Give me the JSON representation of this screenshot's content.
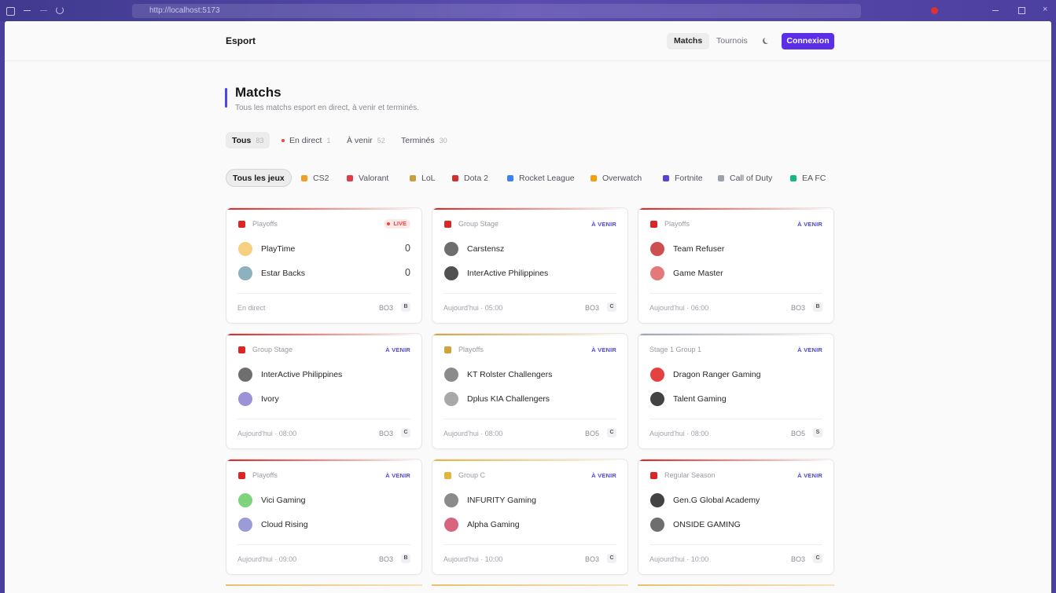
{
  "browser": {
    "url": "http://localhost:5173"
  },
  "header": {
    "brand": "Esport",
    "nav": [
      "Matchs",
      "Tournois"
    ],
    "login": "Connexion"
  },
  "page": {
    "title": "Matchs",
    "subtitle": "Tous les matchs esport en direct, à venir et terminés."
  },
  "status_tabs": [
    {
      "label": "Tous",
      "count": 83
    },
    {
      "label": "En direct",
      "count": 1
    },
    {
      "label": "À venir",
      "count": 52
    },
    {
      "label": "Terminés",
      "count": 30
    }
  ],
  "games": [
    "Tous les jeux",
    "CS2",
    "Valorant",
    "LoL",
    "Dota 2",
    "Rocket League",
    "Overwatch",
    "Fortnite",
    "Call of Duty",
    "EA FC"
  ],
  "matches": [
    {
      "stage": "Playoffs",
      "status": "LIVE",
      "team1": "PlayTime",
      "score1": 0,
      "team2": "Estar Backs",
      "score2": 0,
      "time": "En direct",
      "format": "BO3",
      "badge": "B"
    },
    {
      "stage": "Group Stage",
      "status": "À VENIR",
      "team1": "Carstensz",
      "team2": "InterActive Philippines",
      "time": "Aujourd'hui · 05:00",
      "format": "BO3",
      "badge": "C"
    },
    {
      "stage": "Playoffs",
      "status": "À VENIR",
      "team1": "Team Refuser",
      "team2": "Game Master",
      "time": "Aujourd'hui · 06:00",
      "format": "BO3",
      "badge": "B"
    },
    {
      "stage": "Group Stage",
      "status": "À VENIR",
      "team1": "InterActive Philippines",
      "team2": "Ivory",
      "time": "Aujourd'hui · 08:00",
      "format": "BO3",
      "badge": "C"
    },
    {
      "stage": "Playoffs",
      "status": "À VENIR",
      "team1": "KT Rolster Challengers",
      "team2": "Dplus KIA Challengers",
      "time": "Aujourd'hui · 08:00",
      "format": "BO5",
      "badge": "C"
    },
    {
      "stage": "Stage 1 Group 1",
      "status": "À VENIR",
      "team1": "Dragon Ranger Gaming",
      "team2": "Talent Gaming",
      "time": "Aujourd'hui · 08:00",
      "format": "BO5",
      "badge": "S"
    },
    {
      "stage": "Playoffs",
      "status": "À VENIR",
      "team1": "Vici Gaming",
      "team2": "Cloud Rising",
      "time": "Aujourd'hui · 09:00",
      "format": "BO3",
      "badge": "B"
    },
    {
      "stage": "Group C",
      "status": "À VENIR",
      "team1": "INFURITY Gaming",
      "team2": "Alpha Gaming",
      "time": "Aujourd'hui · 10:00",
      "format": "BO3",
      "badge": "C"
    },
    {
      "stage": "Regular Season",
      "status": "À VENIR",
      "team1": "Gen.G Global Academy",
      "team2": "ONSIDE GAMING",
      "time": "Aujourd'hui · 10:00",
      "format": "BO3",
      "badge": "C"
    }
  ]
}
